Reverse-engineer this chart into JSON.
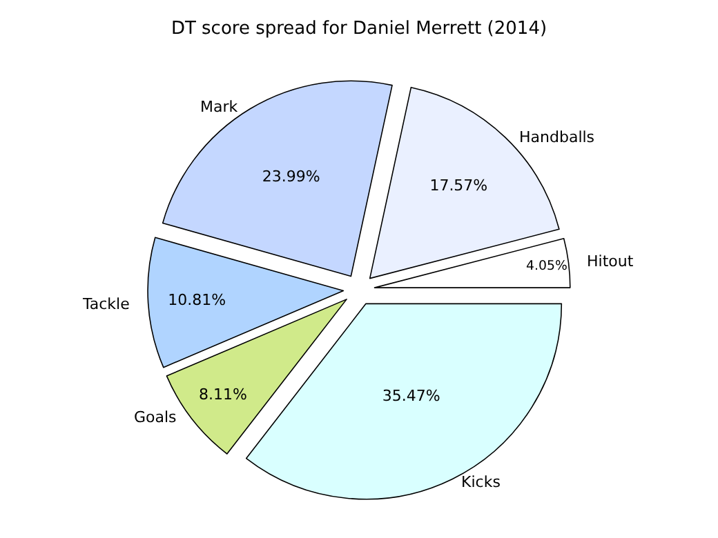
{
  "chart_data": {
    "type": "pie",
    "title": "DT score spread for Daniel Merrett (2014)",
    "categories": [
      "Hitout",
      "Handballs",
      "Mark",
      "Tackle",
      "Goals",
      "Kicks"
    ],
    "values": [
      4.05,
      17.57,
      23.99,
      10.81,
      8.11,
      35.47
    ],
    "value_labels": [
      "4.05%",
      "17.57%",
      "23.99%",
      "10.81%",
      "8.11%",
      "35.47%"
    ],
    "colors": [
      "#ffffff",
      "#eaf0ff",
      "#c4d7ff",
      "#b0d4ff",
      "#d0ea8a",
      "#d9ffff"
    ],
    "legend": false
  }
}
